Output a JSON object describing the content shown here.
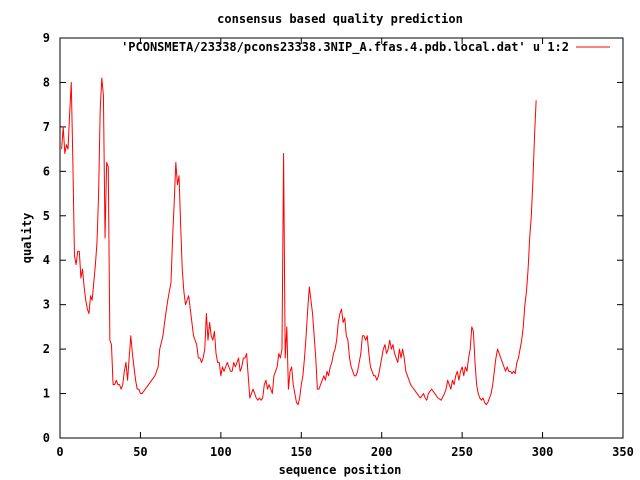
{
  "chart_data": {
    "type": "line",
    "title": "consensus based quality prediction",
    "xlabel": "sequence position",
    "ylabel": "quality",
    "xlim": [
      0,
      350
    ],
    "ylim": [
      0,
      9
    ],
    "xticks": [
      0,
      50,
      100,
      150,
      200,
      250,
      300,
      350
    ],
    "yticks": [
      0,
      1,
      2,
      3,
      4,
      5,
      6,
      7,
      8,
      9
    ],
    "grid": false,
    "legend_position": "top-right",
    "series": [
      {
        "name": "'PCONSMETA/23338/pcons23338.3NIP_A.ffas.4.pdb.local.dat' u 1:2",
        "color": "#ff0000",
        "points": [
          [
            1,
            6.5
          ],
          [
            2,
            7.0
          ],
          [
            3,
            6.4
          ],
          [
            4,
            6.6
          ],
          [
            5,
            6.5
          ],
          [
            6,
            7.3
          ],
          [
            7,
            8.0
          ],
          [
            8,
            6.2
          ],
          [
            9,
            4.1
          ],
          [
            10,
            3.9
          ],
          [
            11,
            4.2
          ],
          [
            12,
            4.2
          ],
          [
            13,
            3.6
          ],
          [
            14,
            3.8
          ],
          [
            15,
            3.4
          ],
          [
            16,
            3.1
          ],
          [
            17,
            2.9
          ],
          [
            18,
            2.8
          ],
          [
            19,
            3.2
          ],
          [
            20,
            3.1
          ],
          [
            21,
            3.5
          ],
          [
            22,
            3.9
          ],
          [
            23,
            4.4
          ],
          [
            24,
            5.5
          ],
          [
            25,
            7.4
          ],
          [
            26,
            8.1
          ],
          [
            27,
            7.7
          ],
          [
            28,
            4.5
          ],
          [
            29,
            6.2
          ],
          [
            30,
            6.1
          ],
          [
            31,
            2.2
          ],
          [
            32,
            2.1
          ],
          [
            33,
            1.2
          ],
          [
            34,
            1.2
          ],
          [
            35,
            1.3
          ],
          [
            36,
            1.2
          ],
          [
            37,
            1.2
          ],
          [
            38,
            1.1
          ],
          [
            39,
            1.2
          ],
          [
            40,
            1.5
          ],
          [
            41,
            1.7
          ],
          [
            42,
            1.3
          ],
          [
            43,
            1.8
          ],
          [
            44,
            2.3
          ],
          [
            45,
            1.9
          ],
          [
            46,
            1.6
          ],
          [
            47,
            1.3
          ],
          [
            48,
            1.1
          ],
          [
            49,
            1.1
          ],
          [
            50,
            1.0
          ],
          [
            51,
            1.0
          ],
          [
            53,
            1.1
          ],
          [
            55,
            1.2
          ],
          [
            57,
            1.3
          ],
          [
            59,
            1.4
          ],
          [
            61,
            1.6
          ],
          [
            62,
            2.0
          ],
          [
            64,
            2.3
          ],
          [
            65,
            2.6
          ],
          [
            67,
            3.1
          ],
          [
            69,
            3.5
          ],
          [
            70,
            4.5
          ],
          [
            71,
            5.3
          ],
          [
            72,
            6.2
          ],
          [
            73,
            5.7
          ],
          [
            74,
            5.9
          ],
          [
            75,
            4.8
          ],
          [
            76,
            3.8
          ],
          [
            77,
            3.3
          ],
          [
            78,
            3.0
          ],
          [
            79,
            3.1
          ],
          [
            80,
            3.2
          ],
          [
            81,
            2.9
          ],
          [
            82,
            2.6
          ],
          [
            83,
            2.3
          ],
          [
            84,
            2.2
          ],
          [
            85,
            2.1
          ],
          [
            86,
            1.8
          ],
          [
            87,
            1.8
          ],
          [
            88,
            1.7
          ],
          [
            89,
            1.8
          ],
          [
            90,
            2.0
          ],
          [
            91,
            2.8
          ],
          [
            92,
            2.2
          ],
          [
            93,
            2.6
          ],
          [
            94,
            2.3
          ],
          [
            95,
            2.2
          ],
          [
            96,
            2.4
          ],
          [
            97,
            1.9
          ],
          [
            98,
            1.7
          ],
          [
            99,
            1.7
          ],
          [
            100,
            1.4
          ],
          [
            101,
            1.6
          ],
          [
            102,
            1.5
          ],
          [
            103,
            1.6
          ],
          [
            104,
            1.7
          ],
          [
            105,
            1.6
          ],
          [
            106,
            1.5
          ],
          [
            107,
            1.5
          ],
          [
            108,
            1.7
          ],
          [
            109,
            1.6
          ],
          [
            110,
            1.7
          ],
          [
            111,
            1.8
          ],
          [
            112,
            1.5
          ],
          [
            113,
            1.6
          ],
          [
            114,
            1.8
          ],
          [
            115,
            1.8
          ],
          [
            116,
            1.9
          ],
          [
            117,
            1.4
          ],
          [
            118,
            0.9
          ],
          [
            119,
            1.0
          ],
          [
            120,
            1.1
          ],
          [
            121,
            1.0
          ],
          [
            122,
            0.9
          ],
          [
            123,
            0.85
          ],
          [
            124,
            0.9
          ],
          [
            125,
            0.85
          ],
          [
            126,
            0.9
          ],
          [
            127,
            1.2
          ],
          [
            128,
            1.3
          ],
          [
            129,
            1.1
          ],
          [
            130,
            1.2
          ],
          [
            131,
            1.1
          ],
          [
            132,
            1.0
          ],
          [
            133,
            1.4
          ],
          [
            134,
            1.5
          ],
          [
            135,
            1.6
          ],
          [
            136,
            1.9
          ],
          [
            137,
            1.8
          ],
          [
            138,
            2.0
          ],
          [
            139,
            6.4
          ],
          [
            140,
            1.8
          ],
          [
            141,
            2.5
          ],
          [
            142,
            1.1
          ],
          [
            143,
            1.5
          ],
          [
            144,
            1.6
          ],
          [
            145,
            1.2
          ],
          [
            146,
            1.0
          ],
          [
            147,
            0.8
          ],
          [
            148,
            0.75
          ],
          [
            149,
            0.9
          ],
          [
            150,
            1.2
          ],
          [
            151,
            1.4
          ],
          [
            152,
            1.8
          ],
          [
            153,
            2.3
          ],
          [
            154,
            2.9
          ],
          [
            155,
            3.4
          ],
          [
            156,
            3.1
          ],
          [
            157,
            2.8
          ],
          [
            158,
            2.3
          ],
          [
            159,
            1.8
          ],
          [
            160,
            1.1
          ],
          [
            161,
            1.1
          ],
          [
            162,
            1.2
          ],
          [
            163,
            1.3
          ],
          [
            164,
            1.4
          ],
          [
            165,
            1.3
          ],
          [
            166,
            1.5
          ],
          [
            167,
            1.4
          ],
          [
            168,
            1.6
          ],
          [
            169,
            1.7
          ],
          [
            170,
            1.9
          ],
          [
            171,
            2.0
          ],
          [
            172,
            2.2
          ],
          [
            173,
            2.6
          ],
          [
            174,
            2.8
          ],
          [
            175,
            2.9
          ],
          [
            176,
            2.6
          ],
          [
            177,
            2.7
          ],
          [
            178,
            2.3
          ],
          [
            179,
            2.2
          ],
          [
            180,
            1.8
          ],
          [
            181,
            1.6
          ],
          [
            182,
            1.5
          ],
          [
            183,
            1.4
          ],
          [
            184,
            1.4
          ],
          [
            185,
            1.5
          ],
          [
            186,
            1.7
          ],
          [
            187,
            1.9
          ],
          [
            188,
            2.3
          ],
          [
            189,
            2.3
          ],
          [
            190,
            2.2
          ],
          [
            191,
            2.3
          ],
          [
            192,
            1.9
          ],
          [
            193,
            1.6
          ],
          [
            194,
            1.5
          ],
          [
            195,
            1.4
          ],
          [
            196,
            1.4
          ],
          [
            197,
            1.3
          ],
          [
            198,
            1.4
          ],
          [
            199,
            1.6
          ],
          [
            200,
            1.8
          ],
          [
            201,
            2.0
          ],
          [
            202,
            2.1
          ],
          [
            203,
            1.9
          ],
          [
            204,
            2.0
          ],
          [
            205,
            2.2
          ],
          [
            206,
            2.0
          ],
          [
            207,
            2.1
          ],
          [
            208,
            1.9
          ],
          [
            209,
            1.8
          ],
          [
            210,
            1.7
          ],
          [
            211,
            2.0
          ],
          [
            212,
            1.8
          ],
          [
            213,
            2.0
          ],
          [
            214,
            1.8
          ],
          [
            215,
            1.5
          ],
          [
            216,
            1.4
          ],
          [
            218,
            1.2
          ],
          [
            220,
            1.1
          ],
          [
            222,
            1.0
          ],
          [
            224,
            0.9
          ],
          [
            226,
            1.0
          ],
          [
            227,
            0.9
          ],
          [
            228,
            0.85
          ],
          [
            229,
            1.0
          ],
          [
            231,
            1.1
          ],
          [
            233,
            1.0
          ],
          [
            235,
            0.9
          ],
          [
            237,
            0.85
          ],
          [
            239,
            1.0
          ],
          [
            240,
            1.1
          ],
          [
            241,
            1.3
          ],
          [
            242,
            1.2
          ],
          [
            243,
            1.1
          ],
          [
            244,
            1.3
          ],
          [
            245,
            1.2
          ],
          [
            246,
            1.4
          ],
          [
            247,
            1.5
          ],
          [
            248,
            1.3
          ],
          [
            249,
            1.5
          ],
          [
            250,
            1.6
          ],
          [
            251,
            1.4
          ],
          [
            252,
            1.6
          ],
          [
            253,
            1.5
          ],
          [
            254,
            1.8
          ],
          [
            255,
            2.0
          ],
          [
            256,
            2.5
          ],
          [
            257,
            2.4
          ],
          [
            258,
            1.7
          ],
          [
            259,
            1.2
          ],
          [
            260,
            1.0
          ],
          [
            261,
            0.9
          ],
          [
            262,
            0.85
          ],
          [
            263,
            0.9
          ],
          [
            264,
            0.8
          ],
          [
            265,
            0.75
          ],
          [
            266,
            0.8
          ],
          [
            267,
            0.9
          ],
          [
            268,
            1.0
          ],
          [
            269,
            1.2
          ],
          [
            270,
            1.5
          ],
          [
            271,
            1.8
          ],
          [
            272,
            2.0
          ],
          [
            273,
            1.9
          ],
          [
            274,
            1.8
          ],
          [
            275,
            1.7
          ],
          [
            276,
            1.6
          ],
          [
            277,
            1.5
          ],
          [
            278,
            1.6
          ],
          [
            279,
            1.5
          ],
          [
            280,
            1.5
          ],
          [
            281,
            1.45
          ],
          [
            282,
            1.5
          ],
          [
            283,
            1.45
          ],
          [
            284,
            1.7
          ],
          [
            285,
            1.8
          ],
          [
            286,
            2.0
          ],
          [
            287,
            2.2
          ],
          [
            288,
            2.5
          ],
          [
            289,
            3.0
          ],
          [
            290,
            3.3
          ],
          [
            291,
            3.8
          ],
          [
            292,
            4.5
          ],
          [
            293,
            5.0
          ],
          [
            294,
            5.8
          ],
          [
            295,
            6.8
          ],
          [
            296,
            7.6
          ]
        ]
      }
    ]
  }
}
